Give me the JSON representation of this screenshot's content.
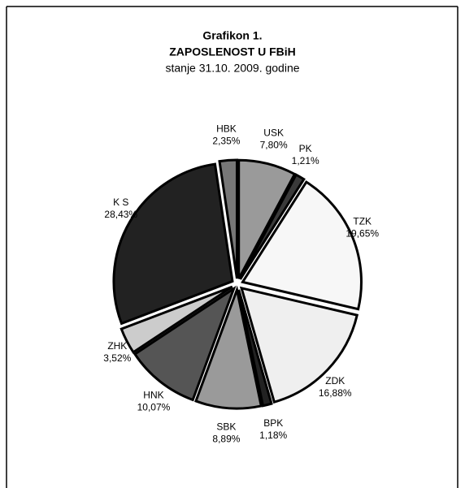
{
  "chart_data": {
    "type": "pie",
    "title": "Grafikon 1.",
    "subtitle": "ZAPOSLENOST U FBiH",
    "note": "stanje 31.10. 2009. godine",
    "categories": [
      "USK",
      "PK",
      "TZK",
      "ZDK",
      "BPK",
      "SBK",
      "HNK",
      "ZHK",
      "K S",
      "HBK"
    ],
    "values": [
      7.8,
      1.21,
      19.65,
      16.88,
      1.18,
      8.89,
      10.07,
      3.52,
      28.43,
      2.35
    ],
    "value_labels": [
      "7,80%",
      "1,21%",
      "19,65%",
      "16,88%",
      "1,18%",
      "8,89%",
      "10,07%",
      "3,52%",
      "28,43%",
      "2,35%"
    ],
    "colors": [
      "#9a9a9a",
      "#3a3a3a",
      "#f7f7f7",
      "#efefef",
      "#222222",
      "#9a9a9a",
      "#555555",
      "#cccccc",
      "#222222",
      "#777777"
    ]
  }
}
